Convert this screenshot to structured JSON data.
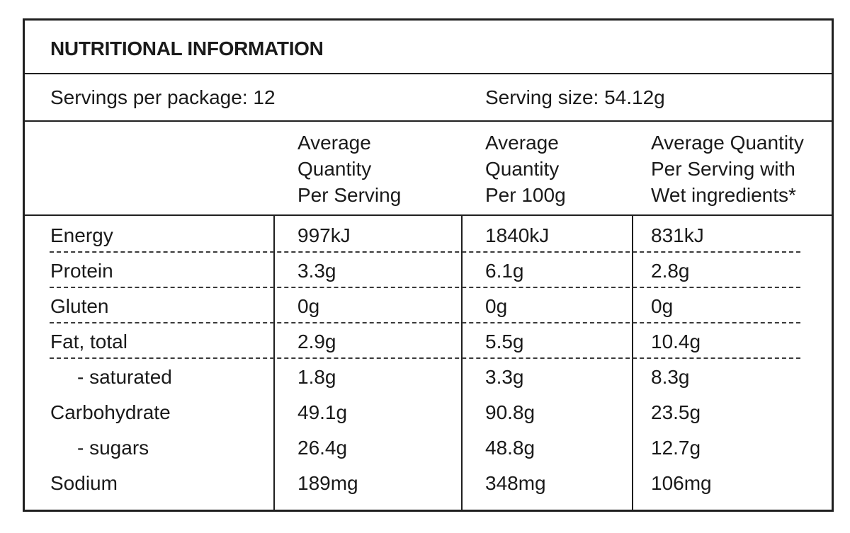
{
  "title": "NUTRITIONAL INFORMATION",
  "servings_per_package": "Servings per package: 12",
  "serving_size": "Serving size: 54.12g",
  "headers": [
    [
      "Average",
      "Quantity",
      "Per Serving"
    ],
    [
      "Average",
      "Quantity",
      "Per 100g"
    ],
    [
      "Average Quantity",
      "Per Serving with",
      "Wet ingredients*"
    ]
  ],
  "rows": [
    {
      "label": "Energy",
      "values": [
        "997kJ",
        "1840kJ",
        "831kJ"
      ]
    },
    {
      "label": "Protein",
      "values": [
        "3.3g",
        "6.1g",
        "2.8g"
      ]
    },
    {
      "label": "Gluten",
      "values": [
        "0g",
        "0g",
        "0g"
      ]
    },
    {
      "label": "Fat, total",
      "values": [
        "2.9g",
        "5.5g",
        "10.4g"
      ]
    },
    {
      "label": "-  saturated",
      "values": [
        "1.8g",
        "3.3g",
        "8.3g"
      ]
    },
    {
      "label": "Carbohydrate",
      "values": [
        "49.1g",
        "90.8g",
        "23.5g"
      ]
    },
    {
      "label": "-  sugars",
      "values": [
        "26.4g",
        "48.8g",
        "12.7g"
      ]
    },
    {
      "label": "Sodium",
      "values": [
        "189mg",
        "348mg",
        "106mg"
      ]
    }
  ]
}
